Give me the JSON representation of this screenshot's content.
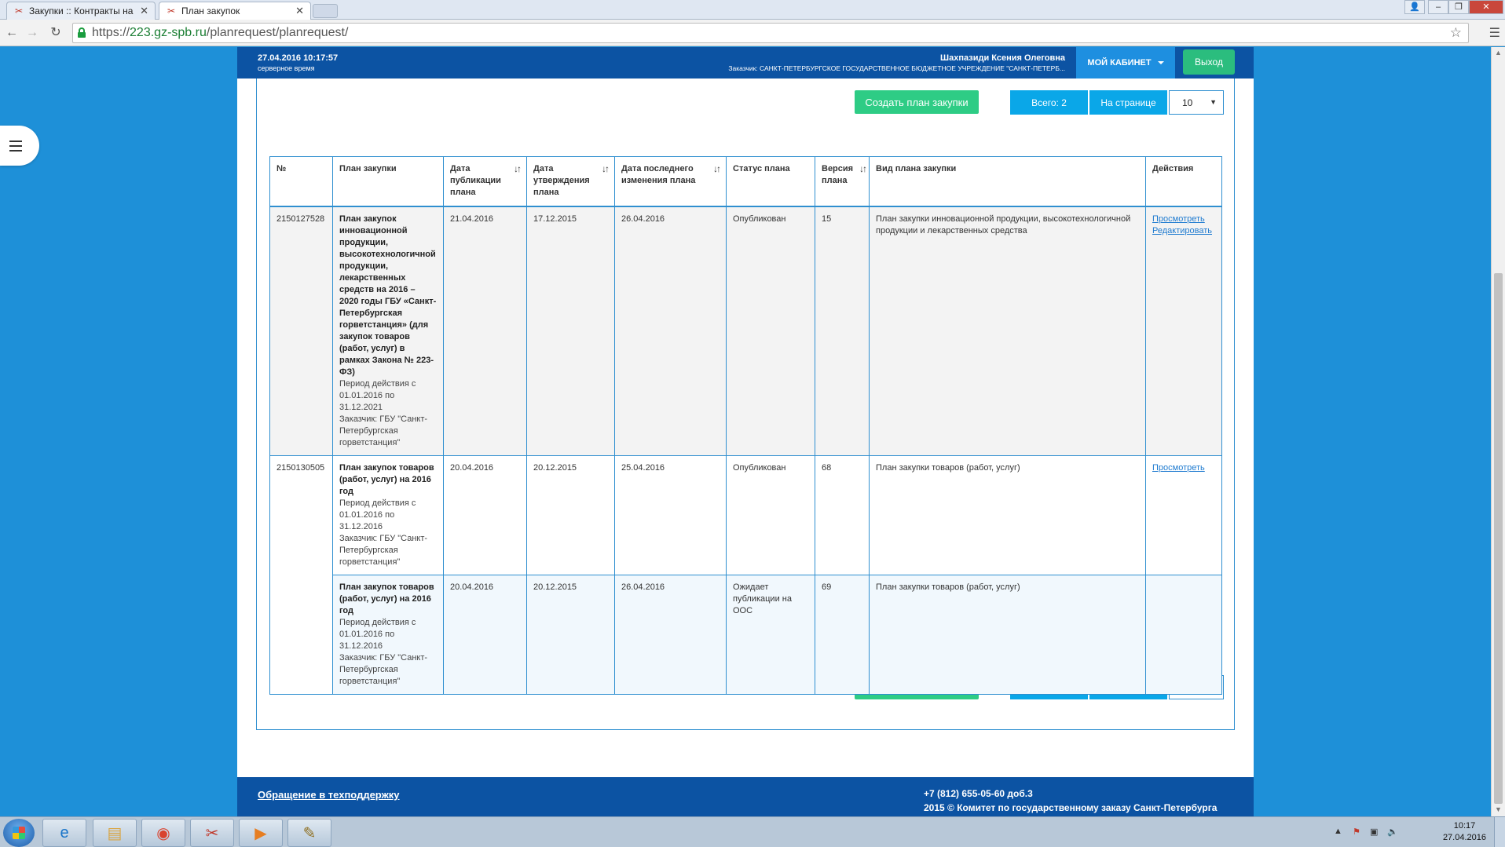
{
  "browser": {
    "tabs": [
      {
        "label": "Закупки :: Контракты на",
        "active": false
      },
      {
        "label": "План закупок",
        "active": true
      }
    ],
    "url_scheme": "https://",
    "url_host": "223.gz-spb.ru",
    "url_path": "/planrequest/planrequest/"
  },
  "header": {
    "date": "27.04.2016 10:17:57",
    "server_time_label": "серверное время",
    "user_name": "Шахпазиди Ксения Олеговна",
    "customer": "Заказчик: САНКТ-ПЕТЕРБУРГСКОЕ ГОСУДАРСТВЕННОЕ БЮДЖЕТНОЕ УЧРЕЖДЕНИЕ \"САНКТ-ПЕТЕРБ...",
    "cabinet_label": "МОЙ КАБИНЕТ",
    "logout_label": "Выход"
  },
  "toolbar": {
    "create_label": "Создать план закупки",
    "total_label": "Всего: 2",
    "per_page_label": "На странице",
    "per_page_value": "10"
  },
  "table": {
    "columns": [
      "№",
      "План закупки",
      "Дата публикации плана",
      "Дата утверждения плана",
      "Дата последнего изменения плана",
      "Статус плана",
      "Версия плана",
      "Вид плана закупки",
      "Действия"
    ],
    "rows": [
      {
        "number": "2150127528",
        "plan_name": "План закупок инновационной продукции, высокотехнологичной продукции, лекарственных средств на 2016 – 2020 годы ГБУ «Санкт-Петербургская горветстанция» (для закупок товаров (работ, услуг) в рамках Закона № 223-ФЗ)",
        "period": "Период действия с 01.01.2016 по 31.12.2021",
        "customer": "Заказчик: ГБУ \"Санкт-Петербургская горветстанция\"",
        "pub_date": "21.04.2016",
        "approve_date": "17.12.2015",
        "change_date": "26.04.2016",
        "status": "Опубликован",
        "version": "15",
        "kind": "План закупки инновационной продукции, высокотехнологичной продукции и лекарственных средства",
        "actions": [
          "Просмотреть",
          "Редактировать"
        ]
      },
      {
        "number": "2150130505",
        "plan_name": "План закупок товаров (работ, услуг) на 2016 год",
        "period": "Период действия с 01.01.2016 по 31.12.2016",
        "customer": "Заказчик: ГБУ \"Санкт-Петербургская горветстанция\"",
        "pub_date": "20.04.2016",
        "approve_date": "20.12.2015",
        "change_date": "25.04.2016",
        "status": "Опубликован",
        "version": "68",
        "kind": "План закупки товаров (работ, услуг)",
        "actions": [
          "Просмотреть"
        ]
      },
      {
        "number": "",
        "plan_name": "План закупок товаров (работ, услуг) на 2016 год",
        "period": "Период действия с 01.01.2016 по 31.12.2016",
        "customer": "Заказчик: ГБУ \"Санкт-Петербургская горветстанция\"",
        "pub_date": "20.04.2016",
        "approve_date": "20.12.2015",
        "change_date": "26.04.2016",
        "status": "Ожидает публикации на ООС",
        "version": "69",
        "kind": "План закупки товаров (работ, услуг)",
        "actions": []
      }
    ]
  },
  "footer": {
    "support_label": "Обращение в техподдержку",
    "phone": "+7 (812) 655-05-60 доб.3",
    "copyright": "2015 © Комитет по государственному заказу Санкт-Петербурга"
  },
  "taskbar": {
    "time": "10:17",
    "date": "27.04.2016"
  }
}
